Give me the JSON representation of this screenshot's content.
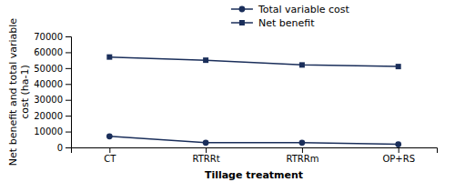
{
  "chart_data": {
    "type": "line",
    "categories": [
      "CT",
      "RTRRt",
      "RTRRm",
      "OP+RS"
    ],
    "series": [
      {
        "name": "Total variable cost",
        "color": "#1a2e5a",
        "marker": "circle",
        "values": [
          7000,
          3000,
          3000,
          2000
        ]
      },
      {
        "name": "Net benefit",
        "color": "#1a2e5a",
        "marker": "square",
        "values": [
          57000,
          55000,
          52000,
          51000
        ]
      }
    ],
    "ylabel": "Net benefit and total variable\ncost (ha-1)",
    "xlabel": "Tillage treatment",
    "ylim": [
      0,
      70000
    ],
    "yticks": [
      0,
      10000,
      20000,
      30000,
      40000,
      50000,
      60000,
      70000
    ],
    "grid": false,
    "legend": "top"
  }
}
